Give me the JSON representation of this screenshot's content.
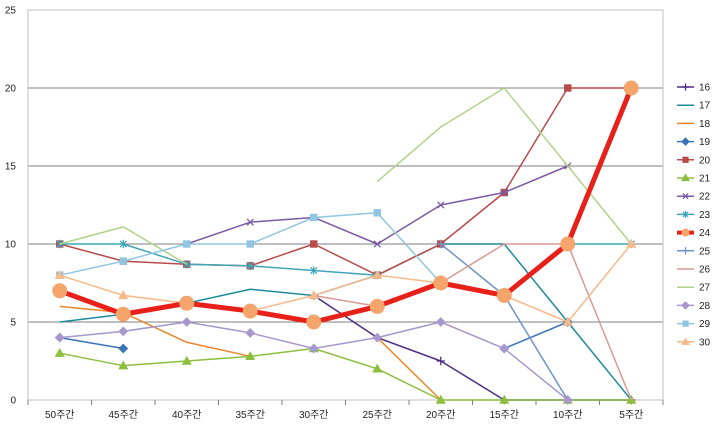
{
  "chart_data": {
    "type": "line",
    "title": "",
    "xlabel": "",
    "ylabel": "",
    "categories": [
      "50주간",
      "45주간",
      "40주간",
      "35주간",
      "30주간",
      "25주간",
      "20주간",
      "15주간",
      "10주간",
      "5주간"
    ],
    "ylim": [
      0,
      25
    ],
    "yticks": [
      0,
      5,
      10,
      15,
      20,
      25
    ],
    "grid": "horizontal",
    "legend_position": "right",
    "series": [
      {
        "name": "16",
        "color": "#4b2e83",
        "marker": "plus",
        "values": [
          null,
          null,
          null,
          null,
          6.7,
          4,
          2.5,
          0,
          0,
          0
        ]
      },
      {
        "name": "17",
        "color": "#1f8a9a",
        "marker": "none",
        "values": [
          5,
          5.5,
          6.2,
          7.1,
          6.7,
          8,
          10,
          10,
          5,
          0
        ]
      },
      {
        "name": "18",
        "color": "#e8862a",
        "marker": "none",
        "values": [
          6,
          5.6,
          3.7,
          2.8,
          null,
          4,
          0,
          null,
          null,
          null
        ]
      },
      {
        "name": "19",
        "color": "#3b73b9",
        "marker": "diamond",
        "values": [
          4,
          3.3,
          null,
          null,
          null,
          null,
          null,
          3.3,
          5,
          null
        ]
      },
      {
        "name": "20",
        "color": "#b84a4a",
        "marker": "square",
        "values": [
          10,
          8.9,
          8.7,
          8.6,
          10,
          8,
          10,
          13.3,
          20,
          20
        ]
      },
      {
        "name": "21",
        "color": "#8cbf3f",
        "marker": "triangle",
        "values": [
          3,
          2.2,
          2.5,
          2.8,
          3.3,
          2,
          0,
          0,
          0,
          0
        ]
      },
      {
        "name": "22",
        "color": "#7b5aa6",
        "marker": "x",
        "values": [
          null,
          null,
          10,
          11.4,
          11.7,
          10,
          12.5,
          13.3,
          15,
          null
        ]
      },
      {
        "name": "23",
        "color": "#3fa5b8",
        "marker": "star",
        "values": [
          10,
          10,
          8.7,
          8.6,
          8.3,
          8,
          null,
          null,
          10,
          10
        ]
      },
      {
        "name": "24",
        "color": "#e8201a",
        "marker": "circle",
        "values": [
          7,
          5.5,
          6.2,
          5.7,
          5,
          6,
          7.5,
          6.7,
          10,
          20
        ]
      },
      {
        "name": "25",
        "color": "#6f93c9",
        "marker": "plus",
        "values": [
          null,
          null,
          null,
          null,
          null,
          null,
          10,
          6.7,
          0,
          null
        ]
      },
      {
        "name": "26",
        "color": "#d99a93",
        "marker": "none",
        "values": [
          null,
          null,
          null,
          null,
          6.7,
          6,
          7.5,
          10,
          10,
          0
        ]
      },
      {
        "name": "27",
        "color": "#b2d28a",
        "marker": "none",
        "values": [
          10,
          11.1,
          8.7,
          null,
          null,
          14,
          17.5,
          20,
          15,
          10
        ]
      },
      {
        "name": "28",
        "color": "#a897cc",
        "marker": "diamond",
        "values": [
          4,
          4.4,
          5,
          4.3,
          3.3,
          4,
          5,
          3.3,
          0,
          null
        ]
      },
      {
        "name": "29",
        "color": "#8fc6e2",
        "marker": "square",
        "values": [
          8,
          8.9,
          10,
          10,
          11.7,
          12,
          7.5,
          null,
          null,
          null
        ]
      },
      {
        "name": "30",
        "color": "#f5b98a",
        "marker": "triangle",
        "values": [
          8,
          6.7,
          6.2,
          5.7,
          6.7,
          8,
          7.5,
          6.7,
          5,
          10
        ]
      }
    ]
  }
}
